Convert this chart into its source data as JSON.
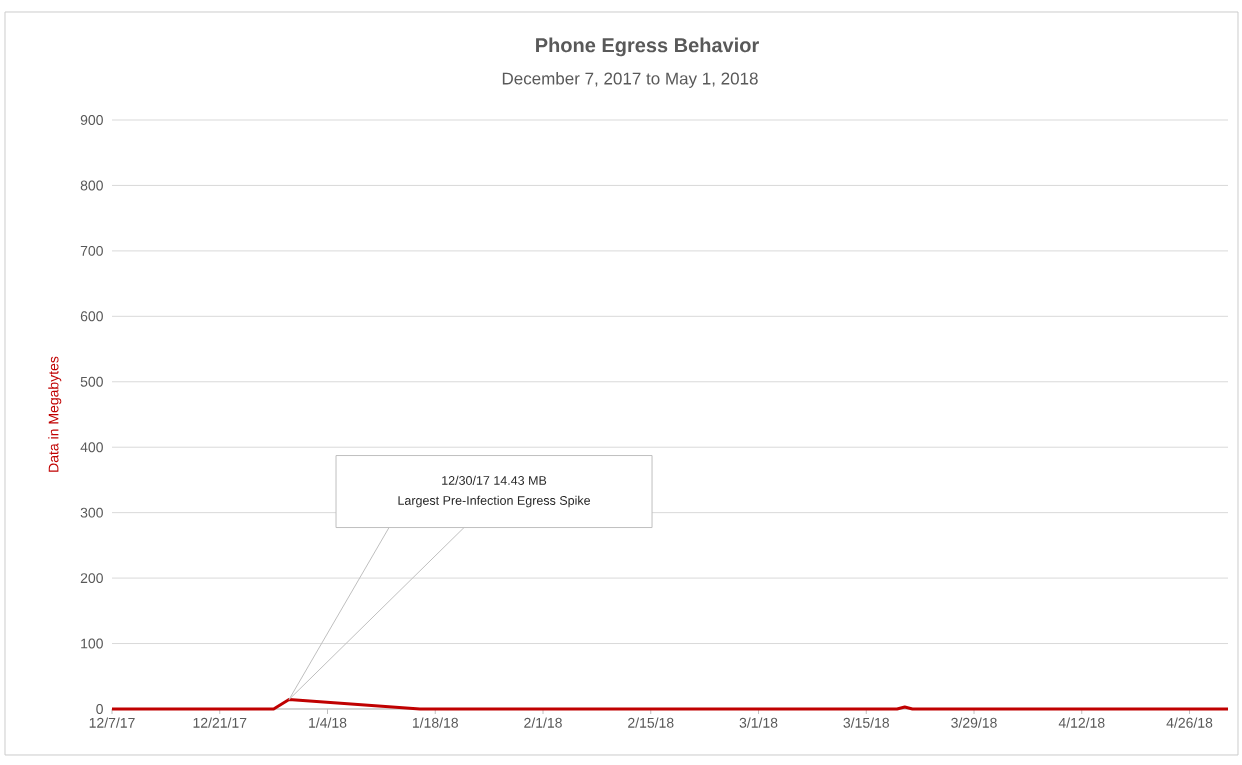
{
  "chart_data": {
    "type": "line",
    "title": "Phone Egress Behavior",
    "subtitle": "December 7, 2017 to May 1, 2018",
    "ylabel": "Data in Megabytes",
    "x": [
      "2017-12-07",
      "2017-12-28",
      "2017-12-30",
      "2018-01-16",
      "2018-03-19",
      "2018-03-20",
      "2018-03-21",
      "2018-05-01"
    ],
    "series": [
      {
        "color": "#c00000",
        "values": [
          0,
          0,
          14.43,
          0,
          0,
          3,
          0,
          0
        ]
      }
    ],
    "xlim": [
      "2017-12-07",
      "2018-05-01"
    ],
    "xticks": [
      {
        "value": "2017-12-07",
        "label": "12/7/17"
      },
      {
        "value": "2017-12-21",
        "label": "12/21/17"
      },
      {
        "value": "2018-01-04",
        "label": "1/4/18"
      },
      {
        "value": "2018-01-18",
        "label": "1/18/18"
      },
      {
        "value": "2018-02-01",
        "label": "2/1/18"
      },
      {
        "value": "2018-02-15",
        "label": "2/15/18"
      },
      {
        "value": "2018-03-01",
        "label": "3/1/18"
      },
      {
        "value": "2018-03-15",
        "label": "3/15/18"
      },
      {
        "value": "2018-03-29",
        "label": "3/29/18"
      },
      {
        "value": "2018-04-12",
        "label": "4/12/18"
      },
      {
        "value": "2018-04-26",
        "label": "4/26/18"
      }
    ],
    "ylim": [
      0,
      900
    ],
    "yticks": [
      0,
      100,
      200,
      300,
      400,
      500,
      600,
      700,
      800,
      900
    ],
    "grid": "y",
    "annotations": [
      "12/30/17 14.43 MB",
      "Largest Pre-Infection Egress Spike"
    ]
  }
}
